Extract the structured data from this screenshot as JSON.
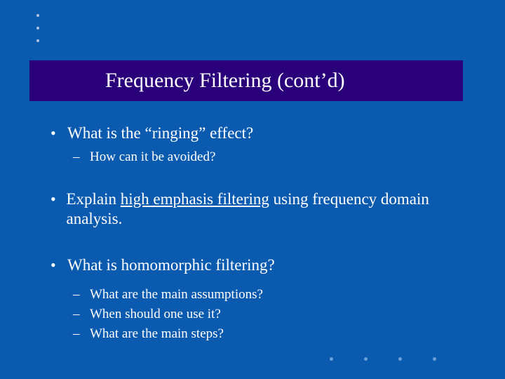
{
  "colors": {
    "slide_bg": "#0a5bb0",
    "title_bg": "#29007a",
    "text": "#ffffff",
    "dot_tl": "#b0c4de",
    "dot_br": "#6aa0d8"
  },
  "title": "Frequency Filtering (cont’d)",
  "items": [
    {
      "level": 1,
      "text": "What is the “ringing” effect?"
    },
    {
      "level": 2,
      "text": "How can it be avoided?"
    },
    {
      "spacer": true
    },
    {
      "level": 1,
      "segments": [
        {
          "text": "Explain "
        },
        {
          "text": "high emphasis filtering",
          "underline": true
        },
        {
          "text": " using frequency domain analysis."
        }
      ]
    },
    {
      "spacer": true
    },
    {
      "level": 1,
      "text": "What is homomorphic filtering?"
    },
    {
      "spacer_sm": true
    },
    {
      "level": 2,
      "text": "What are the main assumptions?"
    },
    {
      "level": 2,
      "text": "When should one use it?"
    },
    {
      "level": 2,
      "text": "What are the main steps?"
    }
  ]
}
